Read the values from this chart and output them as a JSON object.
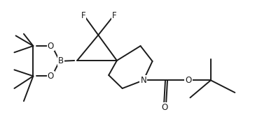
{
  "bg_color": "#ffffff",
  "line_color": "#1a1a1a",
  "line_width": 1.4,
  "font_size": 8.5
}
